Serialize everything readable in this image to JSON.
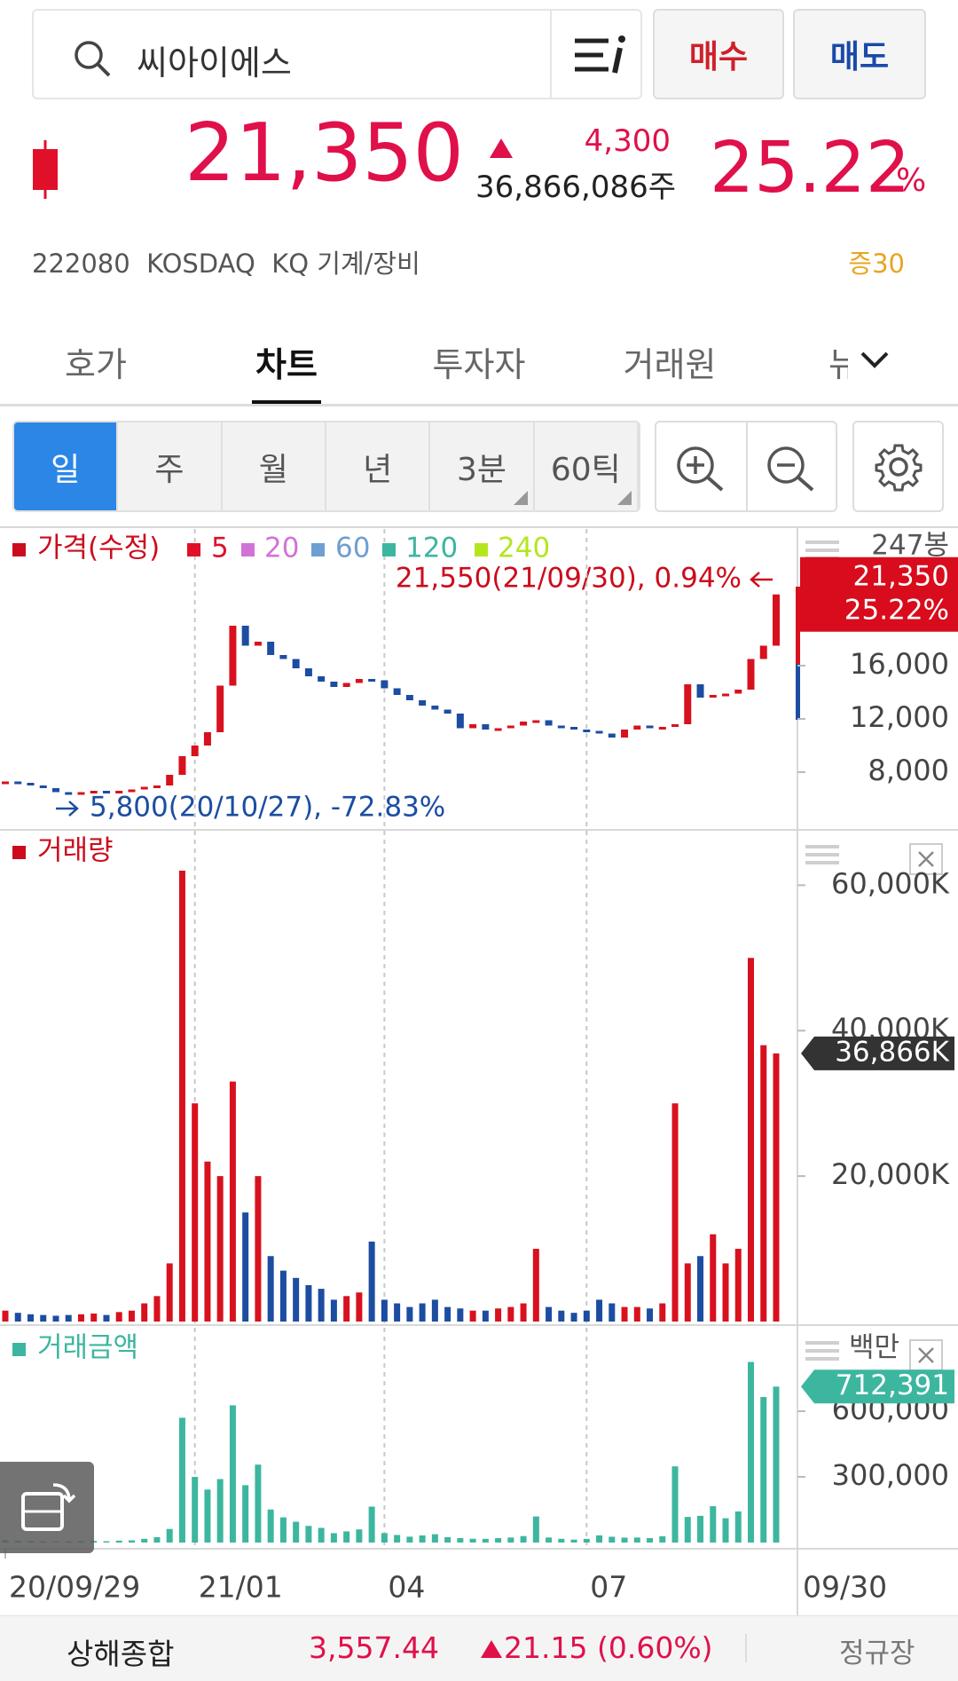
{
  "header": {
    "search_text": "씨아이에스",
    "buy": "매수",
    "sell": "매도",
    "price": "21,350",
    "change": "4,300",
    "volume": "36,866,086주",
    "change_rate": "25.22",
    "rate_unit": "%",
    "info": "222080  KOSDAQ  KQ 기계/장비",
    "margin": "증30"
  },
  "tabs": [
    "호가",
    "차트",
    "투자자",
    "거래원",
    "뉴스"
  ],
  "active_tab": 1,
  "periods": [
    "일",
    "주",
    "월",
    "년",
    "3분",
    "60틱"
  ],
  "active_period": 0,
  "chart_data": [
    {
      "type": "candlestick",
      "title": "가격(수정)",
      "legend": [
        {
          "name": "가격(수정)",
          "color": "#cc0c1c"
        },
        {
          "name": "5",
          "color": "#e0102a"
        },
        {
          "name": "20",
          "color": "#d173d6"
        },
        {
          "name": "60",
          "color": "#6f9ed2"
        },
        {
          "name": "120",
          "color": "#3db6a0"
        },
        {
          "name": "240",
          "color": "#b4e61e"
        }
      ],
      "bar_count": "247봉",
      "up_color": "#d8111e",
      "down_color": "#1c4da1",
      "values": [
        7300,
        7200,
        7000,
        6800,
        6500,
        6400,
        6500,
        6600,
        6500,
        6600,
        6700,
        6900,
        7000,
        7800,
        9200,
        10000,
        11000,
        14500,
        19000,
        17500,
        17800,
        16800,
        16500,
        15800,
        15200,
        14800,
        14400,
        14700,
        15000,
        14900,
        14300,
        13800,
        13400,
        13000,
        12700,
        12400,
        11300,
        11600,
        11200,
        11300,
        11500,
        11800,
        11900,
        11500,
        11400,
        11200,
        11100,
        10900,
        10600,
        11200,
        11500,
        11300,
        11400,
        11600,
        14600,
        13600,
        13800,
        13900,
        14200,
        16500,
        17500,
        21350
      ],
      "ylim": [
        4000,
        26000
      ],
      "yticks": [
        {
          "value": 8000,
          "label": "8,000"
        },
        {
          "value": 12000,
          "label": "12,000"
        },
        {
          "value": 16000,
          "label": "16,000"
        }
      ],
      "high_label": "21,550(21/09/30), 0.94%",
      "low_label": "5,800(20/10/27), -72.83%",
      "last_tag": {
        "value": 21350,
        "label": "21,350",
        "rate": "25.22%"
      },
      "xticks": [
        {
          "value": 0,
          "label": "20/09/29"
        },
        {
          "value": 15,
          "label": "21/01"
        },
        {
          "value": 30,
          "label": "04"
        },
        {
          "value": 46,
          "label": "07"
        }
      ],
      "last_date": "09/30"
    },
    {
      "type": "bar",
      "title": "거래량",
      "color": "#cc0c1c",
      "up_color": "#d8111e",
      "down_color": "#1c4da1",
      "values": [
        1500,
        1200,
        1000,
        900,
        800,
        900,
        1000,
        1100,
        900,
        1300,
        1500,
        2500,
        3500,
        8000,
        62000,
        30000,
        22000,
        20000,
        33000,
        15000,
        20000,
        9000,
        7000,
        6000,
        5000,
        4500,
        3000,
        3500,
        4000,
        11000,
        3000,
        2500,
        2000,
        2500,
        3000,
        2000,
        1800,
        1500,
        1500,
        1800,
        2000,
        2500,
        10000,
        2000,
        1500,
        1200,
        1500,
        3000,
        2500,
        2000,
        2000,
        1800,
        2500,
        30000,
        8000,
        9000,
        12000,
        8000,
        10000,
        50000,
        38000,
        36866
      ],
      "ylim": [
        0,
        67000
      ],
      "yticks": [
        {
          "value": 20000,
          "label": "20,000K"
        },
        {
          "value": 40000,
          "label": "40,000K"
        },
        {
          "value": 60000,
          "label": "60,000K"
        }
      ],
      "last_tag": {
        "value": 36866,
        "label": "36,866K"
      }
    },
    {
      "type": "bar",
      "title": "거래금액",
      "unit": "백만",
      "color": "#3db6a0",
      "values": [
        11000,
        8600,
        7000,
        6100,
        5200,
        5800,
        6500,
        7300,
        5900,
        8600,
        10000,
        17000,
        24500,
        62000,
        570000,
        300000,
        242000,
        290000,
        627000,
        262000,
        356000,
        151000,
        115000,
        95000,
        76000,
        67000,
        43000,
        51000,
        60000,
        164000,
        43000,
        34500,
        26800,
        32500,
        38000,
        24800,
        20300,
        17400,
        16800,
        20300,
        23000,
        29500,
        119000,
        23000,
        17100,
        13400,
        16700,
        32700,
        26500,
        22400,
        23000,
        20300,
        28500,
        348000,
        117000,
        122000,
        166000,
        111000,
        142000,
        825000,
        665000,
        712391
      ],
      "ylim": [
        0,
        965000
      ],
      "yticks": [
        {
          "value": 300000,
          "label": "300,000"
        },
        {
          "value": 600000,
          "label": "600,000"
        }
      ],
      "last_tag": {
        "value": 712391,
        "label": "712,391"
      }
    }
  ],
  "footer": {
    "index_name": "상해종합",
    "index_value": "3,557.44",
    "index_change": "21.15 (0.60%)",
    "session": "정규장"
  }
}
